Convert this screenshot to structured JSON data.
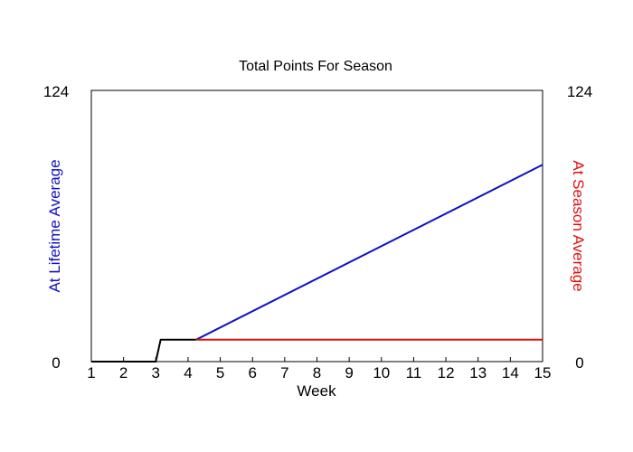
{
  "chart_data": {
    "type": "line",
    "title": "Total Points For Season",
    "xlabel": "Week",
    "ylabel_left": "At Lifetime Average",
    "ylabel_right": "At Season Average",
    "xlim": [
      1,
      15
    ],
    "ylim": [
      0,
      124
    ],
    "x_ticks": [
      "1",
      "2",
      "3",
      "4",
      "5",
      "6",
      "7",
      "8",
      "9",
      "10",
      "11",
      "12",
      "13",
      "14",
      "15"
    ],
    "y_ticks_left": [
      "0",
      "124"
    ],
    "y_ticks_right": [
      "0",
      "124"
    ],
    "grid": false,
    "colors": {
      "left_axis_label": "#1010c8",
      "right_axis_label": "#e01010",
      "actual": "#000000",
      "lifetime": "#1010c8",
      "season": "#e01010"
    },
    "series": [
      {
        "key": "actual",
        "color": "#000000",
        "x": [
          1,
          3,
          3.15,
          4.25
        ],
        "y": [
          0,
          0,
          10,
          10
        ]
      },
      {
        "key": "lifetime",
        "color": "#1010c8",
        "x": [
          4.25,
          15
        ],
        "y": [
          10,
          90
        ]
      },
      {
        "key": "season",
        "color": "#e01010",
        "x": [
          4.25,
          15
        ],
        "y": [
          10,
          10
        ]
      }
    ]
  }
}
